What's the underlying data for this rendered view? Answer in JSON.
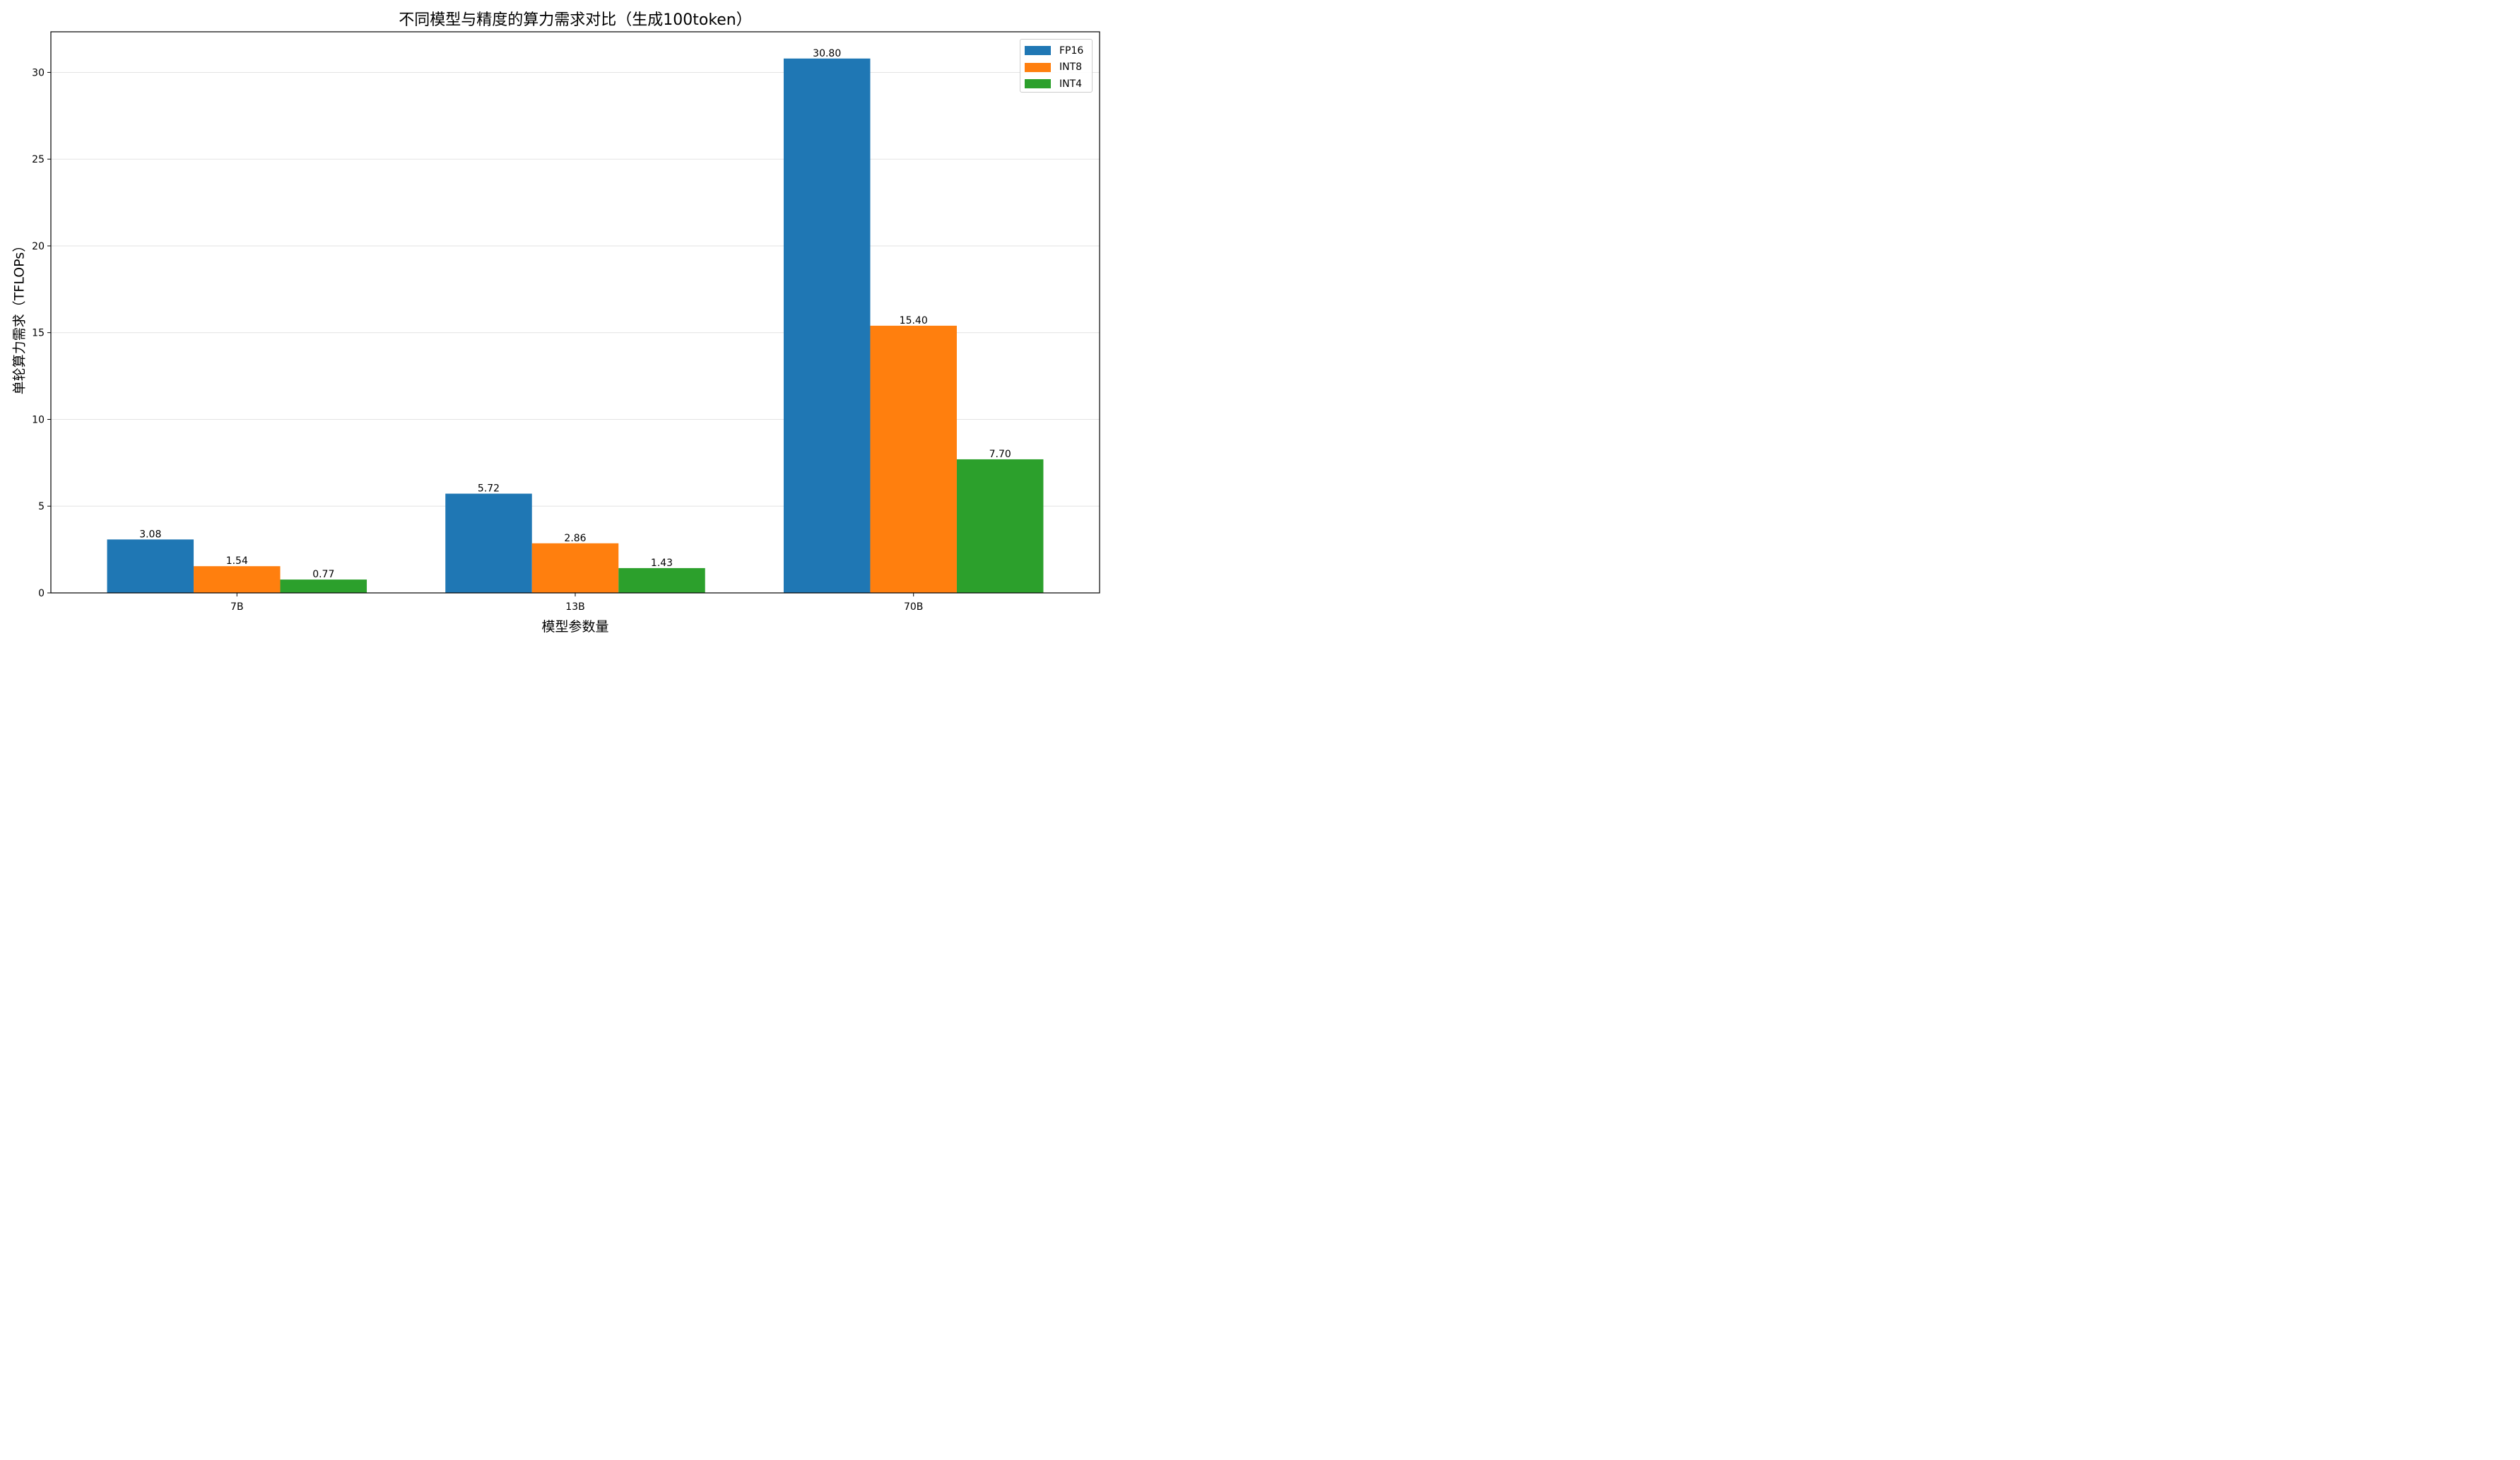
{
  "chart_data": {
    "type": "bar",
    "title": "不同模型与精度的算力需求对比（生成100token）",
    "xlabel": "模型参数量",
    "ylabel": "单轮算力需求（TFLOPs）",
    "categories": [
      "7B",
      "13B",
      "70B"
    ],
    "series": [
      {
        "name": "FP16",
        "color": "#1f77b4",
        "values": [
          3.08,
          5.72,
          30.8
        ],
        "labels": [
          "3.08",
          "5.72",
          "30.80"
        ]
      },
      {
        "name": "INT8",
        "color": "#ff7f0e",
        "values": [
          1.54,
          2.86,
          15.4
        ],
        "labels": [
          "1.54",
          "2.86",
          "15.40"
        ]
      },
      {
        "name": "INT4",
        "color": "#2ca02c",
        "values": [
          0.77,
          1.43,
          7.7
        ],
        "labels": [
          "0.77",
          "1.43",
          "7.70"
        ]
      }
    ],
    "ylim": [
      0,
      32.34
    ],
    "yticks": [
      0,
      5,
      10,
      15,
      20,
      25,
      30
    ],
    "grid": "y",
    "legend": "top-right"
  }
}
